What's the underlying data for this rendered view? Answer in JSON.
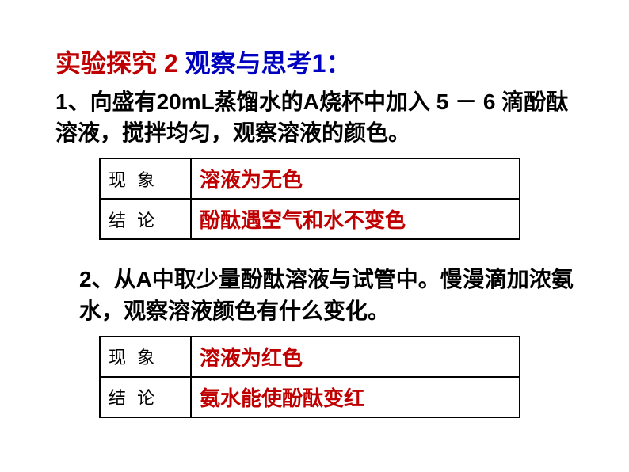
{
  "title": {
    "part1": "实验探究 2 ",
    "part2": "观察与思考1："
  },
  "para1": "1、向盛有20mL蒸馏水的A烧杯中加入 5 － 6 滴酚酞溶液，搅拌均匀，观察溶液的颜色。",
  "table1": {
    "row1": {
      "label": "现 象",
      "value": "溶液为无色"
    },
    "row2": {
      "label": "结 论",
      "value": "酚酞遇空气和水不变色"
    }
  },
  "para2": "2、从A中取少量酚酞溶液与试管中。慢漫滴加浓氨水，观察溶液颜色有什么变化。",
  "table2": {
    "row1": {
      "label": "现 象",
      "value": "溶液为红色"
    },
    "row2": {
      "label": "结 论",
      "value": "氨水能使酚酞变红"
    }
  },
  "colors": {
    "title_red": "#c00000",
    "title_blue": "#0000c0",
    "text_black": "#000000",
    "value_red": "#c00000",
    "border": "#000000",
    "background": "#ffffff"
  },
  "fonts": {
    "title_size": 32,
    "para_size": 28,
    "label_size": 22,
    "value_size": 26
  }
}
